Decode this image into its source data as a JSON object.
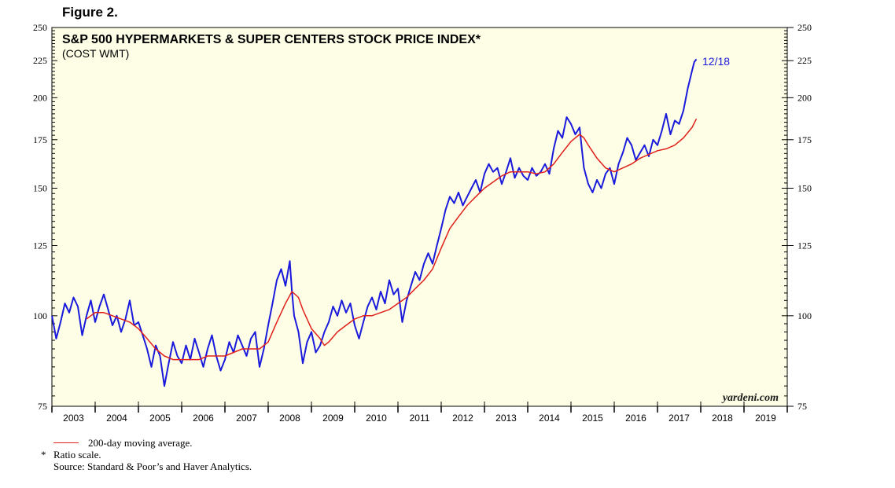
{
  "figure_label": "Figure 2.",
  "chart_data": {
    "type": "line",
    "title": "S&P 500 HYPERMARKETS & SUPER CENTERS STOCK PRICE INDEX*",
    "subtitle": "(COST WMT)",
    "scale": "log",
    "ylim": [
      75,
      250
    ],
    "y_ticks": [
      75,
      100,
      125,
      150,
      175,
      200,
      225,
      250
    ],
    "y_tick_labels": [
      "75",
      "100",
      "125",
      "150",
      "175",
      "200",
      "225",
      "250"
    ],
    "xlim": [
      2003,
      2020
    ],
    "x_tick_labels": [
      "2003",
      "2004",
      "2005",
      "2006",
      "2007",
      "2008",
      "2009",
      "2010",
      "2011",
      "2012",
      "2013",
      "2014",
      "2015",
      "2016",
      "2017",
      "2018",
      "2019"
    ],
    "annotation": "12/18",
    "watermark": "yardeni.com",
    "series": [
      {
        "name": "S&P 500 Hypermarkets & Super Centers Stock Price Index",
        "color": "#1a1adc",
        "points": [
          [
            2003.0,
            100
          ],
          [
            2003.1,
            93
          ],
          [
            2003.2,
            98
          ],
          [
            2003.3,
            104
          ],
          [
            2003.4,
            101
          ],
          [
            2003.5,
            106
          ],
          [
            2003.6,
            103
          ],
          [
            2003.7,
            94
          ],
          [
            2003.8,
            100
          ],
          [
            2003.9,
            105
          ],
          [
            2004.0,
            98
          ],
          [
            2004.1,
            103
          ],
          [
            2004.2,
            107
          ],
          [
            2004.3,
            102
          ],
          [
            2004.4,
            97
          ],
          [
            2004.5,
            100
          ],
          [
            2004.6,
            95
          ],
          [
            2004.7,
            99
          ],
          [
            2004.8,
            105
          ],
          [
            2004.9,
            97
          ],
          [
            2005.0,
            98
          ],
          [
            2005.1,
            94
          ],
          [
            2005.2,
            90
          ],
          [
            2005.3,
            85
          ],
          [
            2005.4,
            91
          ],
          [
            2005.5,
            88
          ],
          [
            2005.6,
            80
          ],
          [
            2005.7,
            86
          ],
          [
            2005.8,
            92
          ],
          [
            2005.9,
            88
          ],
          [
            2006.0,
            86
          ],
          [
            2006.1,
            91
          ],
          [
            2006.2,
            87
          ],
          [
            2006.3,
            93
          ],
          [
            2006.4,
            89
          ],
          [
            2006.5,
            85
          ],
          [
            2006.6,
            90
          ],
          [
            2006.7,
            94
          ],
          [
            2006.8,
            88
          ],
          [
            2006.9,
            84
          ],
          [
            2007.0,
            87
          ],
          [
            2007.1,
            92
          ],
          [
            2007.2,
            89
          ],
          [
            2007.3,
            94
          ],
          [
            2007.4,
            91
          ],
          [
            2007.5,
            88
          ],
          [
            2007.6,
            93
          ],
          [
            2007.7,
            95
          ],
          [
            2007.8,
            85
          ],
          [
            2007.9,
            90
          ],
          [
            2008.0,
            97
          ],
          [
            2008.1,
            104
          ],
          [
            2008.2,
            112
          ],
          [
            2008.3,
            116
          ],
          [
            2008.4,
            110
          ],
          [
            2008.5,
            119
          ],
          [
            2008.55,
            108
          ],
          [
            2008.6,
            100
          ],
          [
            2008.7,
            95
          ],
          [
            2008.8,
            86
          ],
          [
            2008.9,
            92
          ],
          [
            2009.0,
            95
          ],
          [
            2009.1,
            89
          ],
          [
            2009.2,
            91
          ],
          [
            2009.3,
            95
          ],
          [
            2009.4,
            98
          ],
          [
            2009.5,
            103
          ],
          [
            2009.6,
            100
          ],
          [
            2009.7,
            105
          ],
          [
            2009.8,
            101
          ],
          [
            2009.9,
            104
          ],
          [
            2010.0,
            97
          ],
          [
            2010.1,
            93
          ],
          [
            2010.2,
            98
          ],
          [
            2010.3,
            103
          ],
          [
            2010.4,
            106
          ],
          [
            2010.5,
            102
          ],
          [
            2010.6,
            108
          ],
          [
            2010.7,
            104
          ],
          [
            2010.8,
            112
          ],
          [
            2010.9,
            107
          ],
          [
            2011.0,
            109
          ],
          [
            2011.1,
            98
          ],
          [
            2011.2,
            105
          ],
          [
            2011.3,
            110
          ],
          [
            2011.4,
            115
          ],
          [
            2011.5,
            112
          ],
          [
            2011.6,
            118
          ],
          [
            2011.7,
            122
          ],
          [
            2011.8,
            118
          ],
          [
            2011.9,
            125
          ],
          [
            2012.0,
            132
          ],
          [
            2012.1,
            140
          ],
          [
            2012.2,
            146
          ],
          [
            2012.3,
            143
          ],
          [
            2012.4,
            148
          ],
          [
            2012.5,
            142
          ],
          [
            2012.6,
            146
          ],
          [
            2012.7,
            150
          ],
          [
            2012.8,
            154
          ],
          [
            2012.9,
            148
          ],
          [
            2013.0,
            157
          ],
          [
            2013.1,
            162
          ],
          [
            2013.2,
            158
          ],
          [
            2013.3,
            160
          ],
          [
            2013.4,
            152
          ],
          [
            2013.5,
            158
          ],
          [
            2013.6,
            165
          ],
          [
            2013.7,
            155
          ],
          [
            2013.8,
            160
          ],
          [
            2013.9,
            156
          ],
          [
            2014.0,
            154
          ],
          [
            2014.1,
            160
          ],
          [
            2014.2,
            156
          ],
          [
            2014.3,
            158
          ],
          [
            2014.4,
            162
          ],
          [
            2014.5,
            157
          ],
          [
            2014.6,
            170
          ],
          [
            2014.7,
            180
          ],
          [
            2014.8,
            176
          ],
          [
            2014.9,
            188
          ],
          [
            2015.0,
            184
          ],
          [
            2015.1,
            178
          ],
          [
            2015.2,
            182
          ],
          [
            2015.25,
            170
          ],
          [
            2015.3,
            160
          ],
          [
            2015.4,
            152
          ],
          [
            2015.5,
            148
          ],
          [
            2015.6,
            154
          ],
          [
            2015.7,
            150
          ],
          [
            2015.8,
            157
          ],
          [
            2015.9,
            160
          ],
          [
            2016.0,
            152
          ],
          [
            2016.1,
            162
          ],
          [
            2016.2,
            168
          ],
          [
            2016.3,
            176
          ],
          [
            2016.4,
            172
          ],
          [
            2016.5,
            164
          ],
          [
            2016.6,
            168
          ],
          [
            2016.7,
            172
          ],
          [
            2016.8,
            166
          ],
          [
            2016.9,
            175
          ],
          [
            2017.0,
            172
          ],
          [
            2017.1,
            180
          ],
          [
            2017.2,
            190
          ],
          [
            2017.3,
            178
          ],
          [
            2017.4,
            186
          ],
          [
            2017.5,
            184
          ],
          [
            2017.6,
            192
          ],
          [
            2017.7,
            206
          ],
          [
            2017.8,
            218
          ],
          [
            2017.85,
            224
          ],
          [
            2017.9,
            226
          ]
        ]
      },
      {
        "name": "200-day moving average",
        "color": "#e0201b",
        "points": [
          [
            2003.8,
            99
          ],
          [
            2003.9,
            100
          ],
          [
            2004.0,
            101
          ],
          [
            2004.2,
            101
          ],
          [
            2004.4,
            100
          ],
          [
            2004.6,
            99
          ],
          [
            2004.8,
            98
          ],
          [
            2005.0,
            96
          ],
          [
            2005.2,
            93
          ],
          [
            2005.4,
            90
          ],
          [
            2005.6,
            88
          ],
          [
            2005.8,
            87
          ],
          [
            2006.0,
            87
          ],
          [
            2006.2,
            87
          ],
          [
            2006.4,
            87
          ],
          [
            2006.6,
            88
          ],
          [
            2006.8,
            88
          ],
          [
            2007.0,
            88
          ],
          [
            2007.2,
            89
          ],
          [
            2007.4,
            90
          ],
          [
            2007.6,
            90
          ],
          [
            2007.8,
            90
          ],
          [
            2008.0,
            92
          ],
          [
            2008.2,
            98
          ],
          [
            2008.4,
            104
          ],
          [
            2008.55,
            108
          ],
          [
            2008.7,
            106
          ],
          [
            2008.8,
            102
          ],
          [
            2009.0,
            96
          ],
          [
            2009.2,
            93
          ],
          [
            2009.3,
            91
          ],
          [
            2009.4,
            92
          ],
          [
            2009.6,
            95
          ],
          [
            2009.8,
            97
          ],
          [
            2010.0,
            99
          ],
          [
            2010.2,
            100
          ],
          [
            2010.4,
            100
          ],
          [
            2010.6,
            101
          ],
          [
            2010.8,
            102
          ],
          [
            2011.0,
            104
          ],
          [
            2011.2,
            106
          ],
          [
            2011.4,
            109
          ],
          [
            2011.6,
            112
          ],
          [
            2011.8,
            116
          ],
          [
            2012.0,
            124
          ],
          [
            2012.2,
            132
          ],
          [
            2012.4,
            137
          ],
          [
            2012.6,
            142
          ],
          [
            2012.8,
            146
          ],
          [
            2013.0,
            150
          ],
          [
            2013.2,
            153
          ],
          [
            2013.4,
            156
          ],
          [
            2013.6,
            158
          ],
          [
            2013.8,
            158
          ],
          [
            2014.0,
            158
          ],
          [
            2014.2,
            157
          ],
          [
            2014.4,
            158
          ],
          [
            2014.6,
            162
          ],
          [
            2014.8,
            168
          ],
          [
            2015.0,
            174
          ],
          [
            2015.2,
            178
          ],
          [
            2015.3,
            176
          ],
          [
            2015.4,
            172
          ],
          [
            2015.6,
            165
          ],
          [
            2015.8,
            160
          ],
          [
            2016.0,
            158
          ],
          [
            2016.2,
            160
          ],
          [
            2016.4,
            162
          ],
          [
            2016.6,
            165
          ],
          [
            2016.8,
            167
          ],
          [
            2017.0,
            169
          ],
          [
            2017.2,
            170
          ],
          [
            2017.4,
            172
          ],
          [
            2017.6,
            176
          ],
          [
            2017.8,
            182
          ],
          [
            2017.9,
            187
          ]
        ]
      }
    ]
  },
  "notes": {
    "legend_label": "200-day moving average.",
    "asterisk": "*",
    "ratio_scale": "Ratio scale.",
    "source": "Source: Standard & Poor’s and Haver Analytics."
  }
}
